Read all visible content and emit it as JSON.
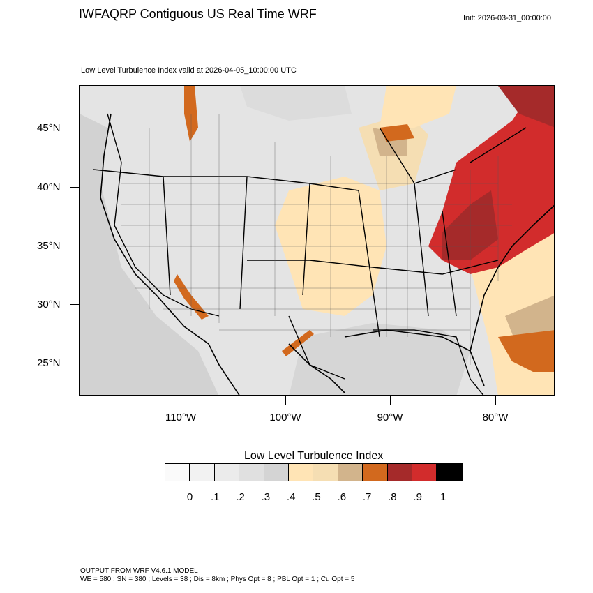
{
  "header": {
    "title": "IWFAQRP Contiguous US Real Time WRF",
    "init": "Init: 2026-03-31_00:00:00",
    "subtitle": "Low Level Turbulence Index valid at 2026-04-05_10:00:00 UTC"
  },
  "map": {
    "lat_labels": [
      "45°N",
      "40°N",
      "35°N",
      "30°N",
      "25°N"
    ],
    "lon_labels": [
      "110°W",
      "100°W",
      "90°W",
      "80°W"
    ],
    "region": "Contiguous US"
  },
  "legend": {
    "title": "Low Level Turbulence Index",
    "labels": [
      "0",
      ".1",
      ".2",
      ".3",
      ".4",
      ".5",
      ".6",
      ".7",
      ".8",
      ".9",
      "1"
    ],
    "colors": [
      "#fafafa",
      "#f2f2f2",
      "#ebebeb",
      "#e0e0e0",
      "#d4d4d4",
      "#ffe4b5",
      "#f5deb3",
      "#d2b48c",
      "#d2691e",
      "#a52a2a",
      "#d22c2c",
      "#000000"
    ]
  },
  "footer": {
    "line1": "OUTPUT FROM WRF V4.6.1 MODEL",
    "line2": "WE = 580 ; SN = 380 ; Levels = 38 ; Dis = 8km ; Phys Opt = 8 ; PBL Opt = 1 ; Cu Opt = 5"
  }
}
